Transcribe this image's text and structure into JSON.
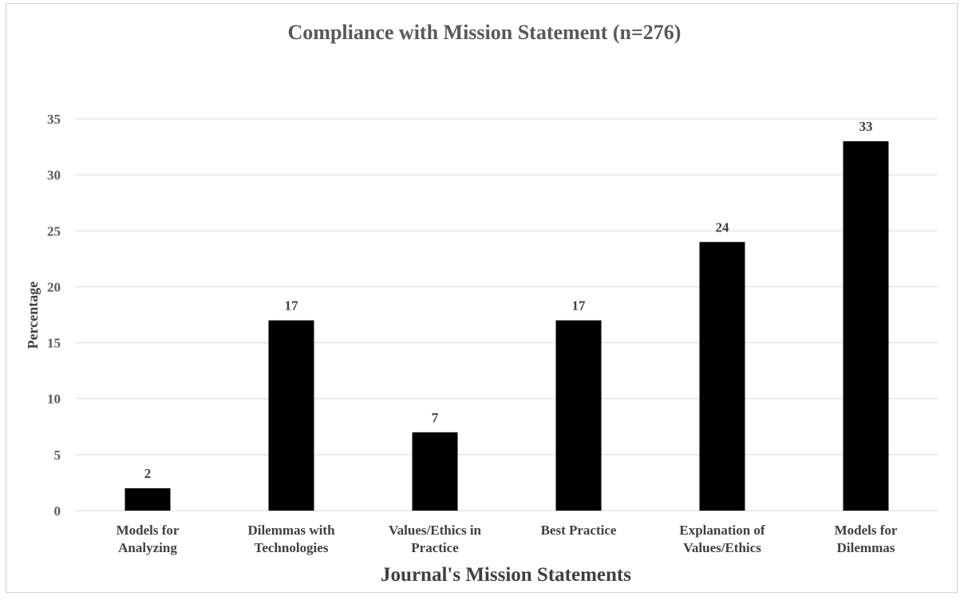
{
  "chart_data": {
    "type": "bar",
    "title": "Compliance with Mission Statement (n=276)",
    "xlabel": "Journal's Mission Statements",
    "ylabel": "Percentage",
    "categories": [
      [
        "Models for",
        "Analyzing"
      ],
      [
        "Dilemmas with",
        "Technologies"
      ],
      [
        "Values/Ethics in",
        "Practice"
      ],
      [
        "Best Practice"
      ],
      [
        "Explanation of",
        "Values/Ethics"
      ],
      [
        "Models for",
        "Dilemmas"
      ]
    ],
    "values": [
      2,
      17,
      7,
      17,
      24,
      33
    ],
    "data_labels": [
      "2",
      "17",
      "7",
      "17",
      "24",
      "33"
    ],
    "ylim": [
      0,
      35
    ],
    "yticks": [
      0,
      5,
      10,
      15,
      20,
      25,
      30,
      35
    ],
    "grid": true,
    "legend": "none",
    "bar_color": "#000000",
    "grid_color": "#d9d9d9"
  }
}
